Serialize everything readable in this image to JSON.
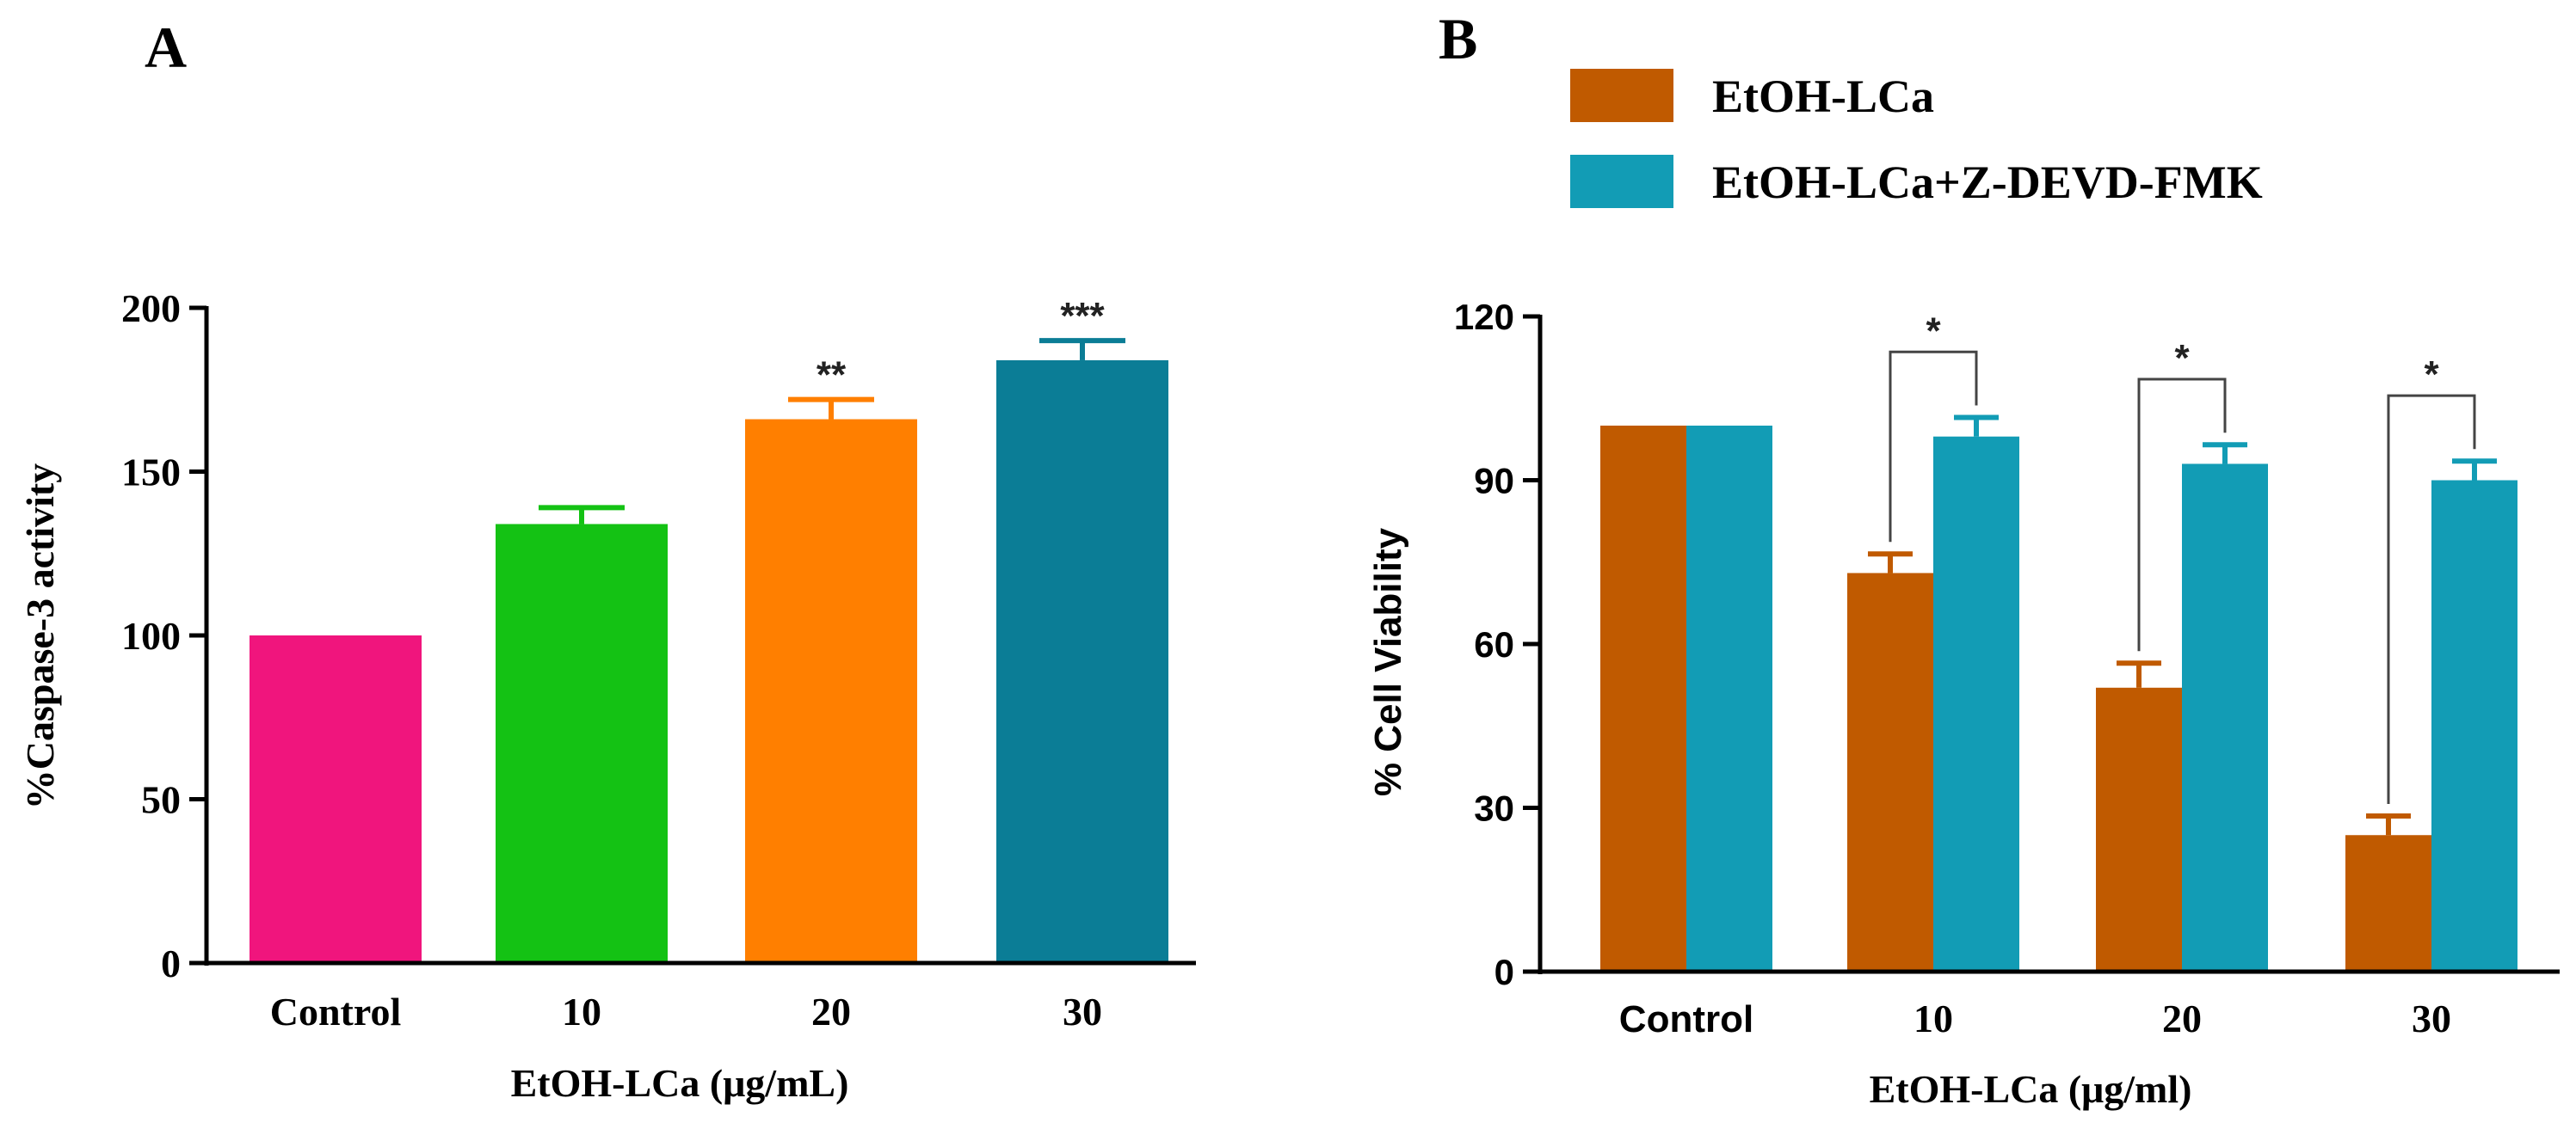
{
  "chart_data": [
    {
      "type": "bar",
      "panel_label": "A",
      "categories": [
        "Control",
        "10",
        "20",
        "30"
      ],
      "values": [
        100,
        134,
        166,
        184
      ],
      "errors": [
        0,
        5,
        6,
        6
      ],
      "bar_colors": [
        "#f0157d",
        "#14c214",
        "#ff7f00",
        "#0b7d96"
      ],
      "significance": [
        "",
        "",
        "**",
        "***"
      ],
      "xlabel": "EtOH-LCa (μg/mL)",
      "ylabel": "%Caspase-3 activity",
      "ylim": [
        0,
        200
      ],
      "yticks": [
        0,
        50,
        100,
        150,
        200
      ],
      "grid": false
    },
    {
      "type": "bar",
      "panel_label": "B",
      "categories": [
        "Control",
        "10",
        "20",
        "30"
      ],
      "series": [
        {
          "name": "EtOH-LCa",
          "color": "#c05a00",
          "values": [
            100,
            73,
            52,
            25
          ],
          "errors": [
            0,
            3.5,
            4.5,
            3.5
          ]
        },
        {
          "name": "EtOH-LCa+Z-DEVD-FMK",
          "color": "#129cb5",
          "values": [
            100,
            98,
            93,
            90
          ],
          "errors": [
            0,
            3.5,
            3.5,
            3.5
          ]
        }
      ],
      "significance": [
        "",
        "*",
        "*",
        "*"
      ],
      "xlabel": "EtOH-LCa (μg/ml)",
      "ylabel": "% Cell Viability",
      "ylim": [
        0,
        120
      ],
      "yticks": [
        0,
        30,
        60,
        90,
        120
      ],
      "legend_position": "top",
      "grid": false
    }
  ]
}
